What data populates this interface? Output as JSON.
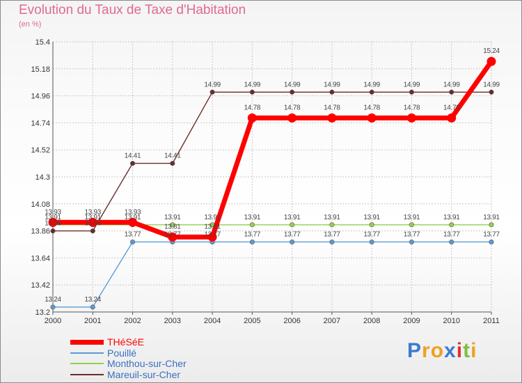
{
  "header": {
    "title": "Evolution du Taux de Taxe d'Habitation",
    "unit": "(en %)"
  },
  "chart_data": {
    "type": "line",
    "categories": [
      "2000",
      "2001",
      "2002",
      "2003",
      "2004",
      "2005",
      "2006",
      "2007",
      "2008",
      "2009",
      "2010",
      "2011"
    ],
    "ylim": [
      13.2,
      15.4
    ],
    "yticks": [
      "13.2",
      "13.42",
      "13.64",
      "13.86",
      "14.08",
      "14.3",
      "14.52",
      "14.74",
      "14.96",
      "15.18",
      "15.4"
    ],
    "series": [
      {
        "name": "Mareuil-sur-Cher",
        "color": "#6b2b2b",
        "values": [
          13.86,
          13.86,
          14.41,
          14.41,
          14.99,
          14.99,
          14.99,
          14.99,
          14.99,
          14.99,
          14.99,
          14.99
        ],
        "labels": [
          "13.86",
          "13.86",
          "14.41",
          "14.41",
          "14.99",
          "14.99",
          "14.99",
          "14.99",
          "14.99",
          "14.99",
          "14.99",
          "14.99"
        ]
      },
      {
        "name": "Pouillé",
        "color": "#5b9bd5",
        "values": [
          13.24,
          13.24,
          13.77,
          13.77,
          13.77,
          13.77,
          13.77,
          13.77,
          13.77,
          13.77,
          13.77,
          13.77
        ],
        "labels": [
          "13.24",
          "13.24",
          "13.77",
          "13.77",
          "13.77",
          "13.77",
          "13.77",
          "13.77",
          "13.77",
          "13.77",
          "13.77",
          "13.77"
        ]
      },
      {
        "name": "Monthou-sur-Cher",
        "color": "#92d050",
        "values": [
          13.91,
          13.91,
          13.91,
          13.91,
          13.91,
          13.91,
          13.91,
          13.91,
          13.91,
          13.91,
          13.91,
          13.91
        ],
        "labels": [
          "13.91",
          "13.91",
          "13.91",
          "13.91",
          "13.91",
          "13.91",
          "13.91",
          "13.91",
          "13.91",
          "13.91",
          "13.91",
          "13.91"
        ]
      },
      {
        "name": "THéSéE",
        "color": "#ff0000",
        "values": [
          13.93,
          13.93,
          13.93,
          13.81,
          13.81,
          14.78,
          14.78,
          14.78,
          14.78,
          14.78,
          14.78,
          15.24
        ],
        "labels": [
          "13.93",
          "13.93",
          "13.93",
          "13.81",
          "13.81",
          "14.78",
          "14.78",
          "14.78",
          "14.78",
          "14.78",
          "14.78",
          "15.24"
        ]
      }
    ]
  },
  "legend": [
    {
      "label": "THéSéE",
      "color": "#ff0000",
      "text_color": "#ff0000",
      "thickness": 7
    },
    {
      "label": "Pouillé",
      "color": "#5b9bd5",
      "text_color": "#3a6fc0",
      "thickness": 2
    },
    {
      "label": "Monthou-sur-Cher",
      "color": "#92d050",
      "text_color": "#3a6fc0",
      "thickness": 2
    },
    {
      "label": "Mareuil-sur-Cher",
      "color": "#6b2b2b",
      "text_color": "#3a6fc0",
      "thickness": 2
    }
  ],
  "logo": {
    "letters": [
      "P",
      "r",
      "o",
      "x",
      "i",
      "t",
      "i"
    ],
    "colors": [
      "#3b7bd0",
      "#f0a020",
      "#f0a020",
      "#3b7bd0",
      "#e03030",
      "#7ac040",
      "#f0a020"
    ]
  }
}
